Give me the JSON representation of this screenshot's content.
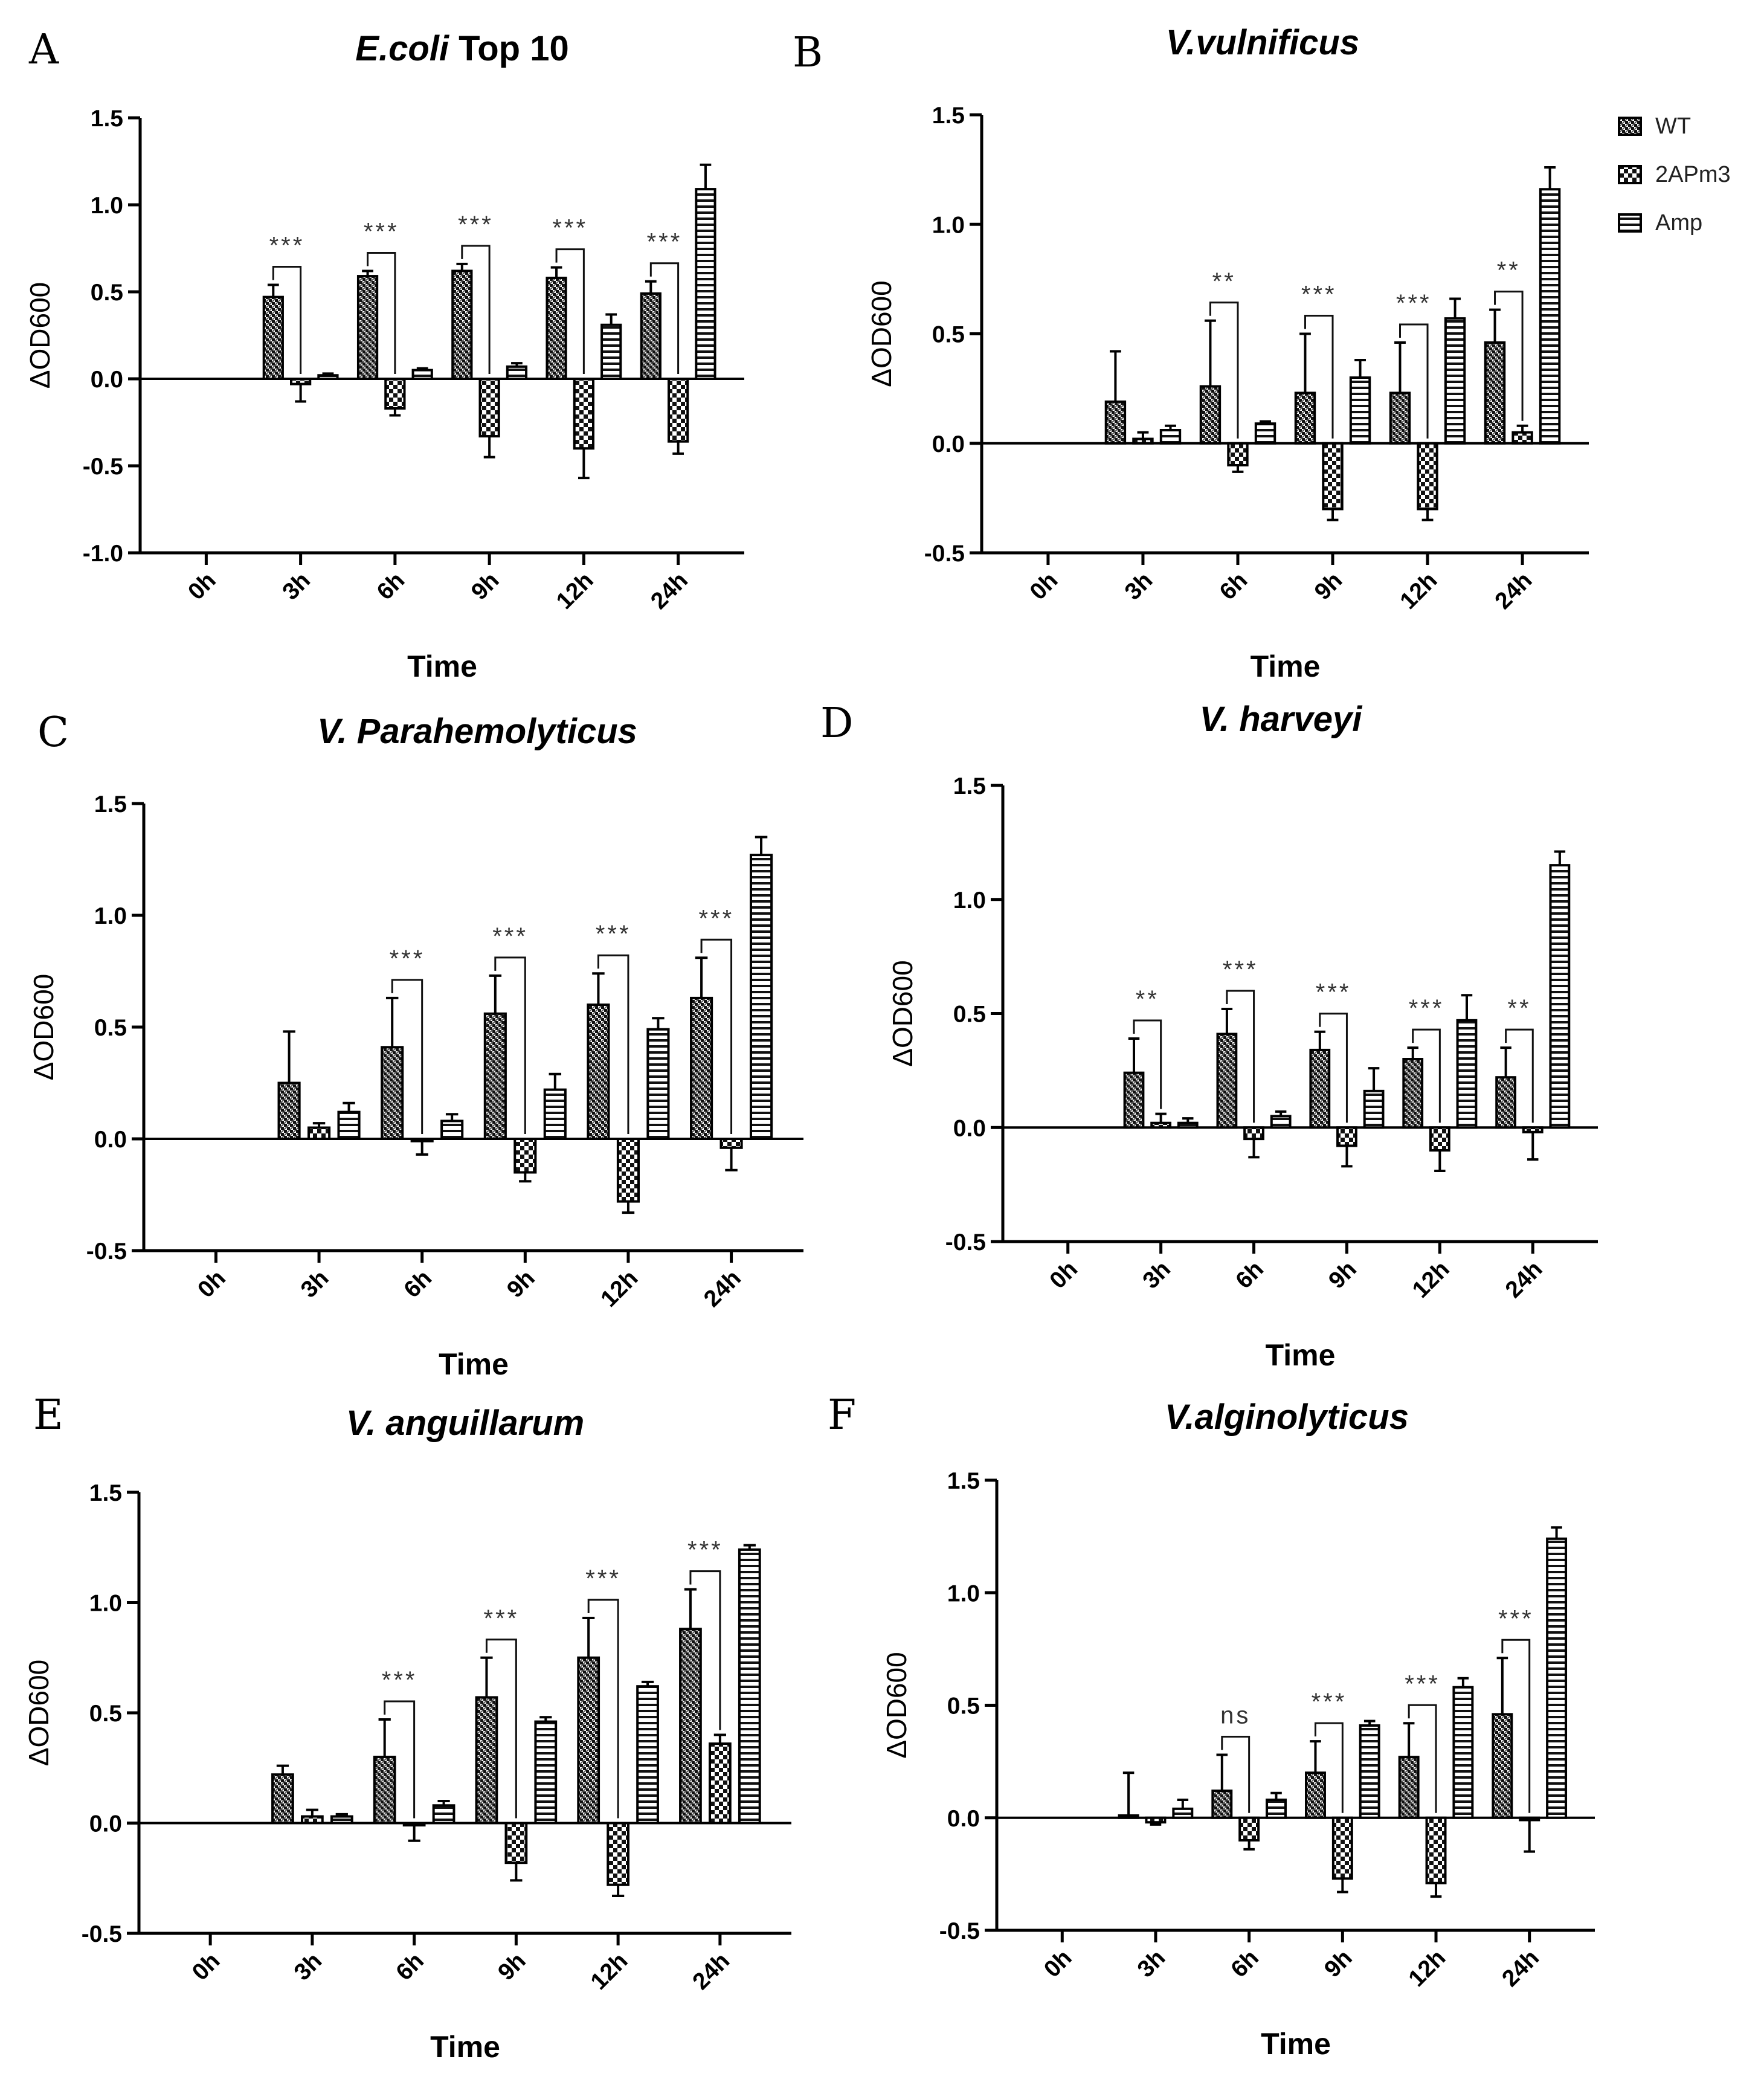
{
  "series_styles": {
    "WT": {
      "fill_pattern": "pat-wt"
    },
    "2APm3": {
      "fill_pattern": "pat-2apm3"
    },
    "Amp": {
      "fill_pattern": "pat-amp"
    }
  },
  "legend": {
    "placement": "top-right of panel B",
    "entries": [
      "WT",
      "2APm3",
      "Amp"
    ]
  },
  "chart_data": [
    {
      "panel": "A",
      "type": "bar",
      "title": "E.coli",
      "title_suffix": " Top 10",
      "xlabel": "Time",
      "ylabel": "ΔOD600",
      "ylim": [
        -1.0,
        1.5
      ],
      "yticks": [
        -1.0,
        -0.5,
        0.0,
        0.5,
        1.0,
        1.5
      ],
      "ytick_labels": [
        "-1.0",
        "-0.5",
        "0.0",
        "0.5",
        "1.0",
        "1.5"
      ],
      "categories": [
        "0h",
        "3h",
        "6h",
        "9h",
        "12h",
        "24h"
      ],
      "series": [
        {
          "name": "WT",
          "values": [
            0,
            0.47,
            0.59,
            0.62,
            0.58,
            0.49
          ],
          "errors": [
            0,
            0.07,
            0.03,
            0.04,
            0.06,
            0.07
          ]
        },
        {
          "name": "2APm3",
          "values": [
            0,
            -0.03,
            -0.17,
            -0.33,
            -0.4,
            -0.36
          ],
          "errors": [
            0,
            0.1,
            0.04,
            0.12,
            0.17,
            0.07
          ]
        },
        {
          "name": "Amp",
          "values": [
            0,
            0.02,
            0.05,
            0.07,
            0.31,
            1.09
          ],
          "errors": [
            0,
            0.01,
            0.01,
            0.02,
            0.06,
            0.14
          ]
        }
      ],
      "significance": [
        {
          "category": "3h",
          "label": "***"
        },
        {
          "category": "6h",
          "label": "***"
        },
        {
          "category": "9h",
          "label": "***"
        },
        {
          "category": "12h",
          "label": "***"
        },
        {
          "category": "24h",
          "label": "***"
        }
      ],
      "grid": false
    },
    {
      "panel": "B",
      "type": "bar",
      "title": "V.vulnificus",
      "title_suffix": "",
      "xlabel": "Time",
      "ylabel": "ΔOD600",
      "ylim": [
        -0.5,
        1.5
      ],
      "yticks": [
        -0.5,
        0.0,
        0.5,
        1.0,
        1.5
      ],
      "ytick_labels": [
        "-0.5",
        "0.0",
        "0.5",
        "1.0",
        "1.5"
      ],
      "categories": [
        "0h",
        "3h",
        "6h",
        "9h",
        "12h",
        "24h"
      ],
      "series": [
        {
          "name": "WT",
          "values": [
            0,
            0.19,
            0.26,
            0.23,
            0.23,
            0.46
          ],
          "errors": [
            0,
            0.23,
            0.3,
            0.27,
            0.23,
            0.15
          ]
        },
        {
          "name": "2APm3",
          "values": [
            0,
            0.02,
            -0.1,
            -0.3,
            -0.3,
            0.05
          ],
          "errors": [
            0,
            0.03,
            0.03,
            0.05,
            0.05,
            0.03
          ]
        },
        {
          "name": "Amp",
          "values": [
            0,
            0.06,
            0.09,
            0.3,
            0.57,
            1.16
          ],
          "errors": [
            0,
            0.02,
            0.01,
            0.08,
            0.09,
            0.1
          ]
        }
      ],
      "significance": [
        {
          "category": "6h",
          "label": "**"
        },
        {
          "category": "9h",
          "label": "***"
        },
        {
          "category": "12h",
          "label": "***"
        },
        {
          "category": "24h",
          "label": "**"
        }
      ],
      "grid": false
    },
    {
      "panel": "C",
      "type": "bar",
      "title": "V. Parahemolyticus",
      "title_suffix": "",
      "xlabel": "Time",
      "ylabel": "ΔOD600",
      "ylim": [
        -0.5,
        1.5
      ],
      "yticks": [
        -0.5,
        0.0,
        0.5,
        1.0,
        1.5
      ],
      "ytick_labels": [
        "-0.5",
        "0.0",
        "0.5",
        "1.0",
        "1.5"
      ],
      "categories": [
        "0h",
        "3h",
        "6h",
        "9h",
        "12h",
        "24h"
      ],
      "series": [
        {
          "name": "WT",
          "values": [
            0,
            0.25,
            0.41,
            0.56,
            0.6,
            0.63
          ],
          "errors": [
            0,
            0.23,
            0.22,
            0.17,
            0.14,
            0.18
          ]
        },
        {
          "name": "2APm3",
          "values": [
            0,
            0.05,
            -0.01,
            -0.15,
            -0.28,
            -0.04
          ],
          "errors": [
            0,
            0.02,
            0.06,
            0.04,
            0.05,
            0.1
          ]
        },
        {
          "name": "Amp",
          "values": [
            0,
            0.12,
            0.08,
            0.22,
            0.49,
            1.27
          ],
          "errors": [
            0,
            0.04,
            0.03,
            0.07,
            0.05,
            0.08
          ]
        }
      ],
      "significance": [
        {
          "category": "6h",
          "label": "***"
        },
        {
          "category": "9h",
          "label": "***"
        },
        {
          "category": "12h",
          "label": "***"
        },
        {
          "category": "24h",
          "label": "***"
        }
      ],
      "grid": false
    },
    {
      "panel": "D",
      "type": "bar",
      "title": "V. harveyi",
      "title_suffix": "",
      "xlabel": "Time",
      "ylabel": "ΔOD600",
      "ylim": [
        -0.5,
        1.5
      ],
      "yticks": [
        -0.5,
        0.0,
        0.5,
        1.0,
        1.5
      ],
      "ytick_labels": [
        "-0.5",
        "0.0",
        "0.5",
        "1.0",
        "1.5"
      ],
      "categories": [
        "0h",
        "3h",
        "6h",
        "9h",
        "12h",
        "24h"
      ],
      "series": [
        {
          "name": "WT",
          "values": [
            0,
            0.24,
            0.41,
            0.34,
            0.3,
            0.22
          ],
          "errors": [
            0,
            0.15,
            0.11,
            0.08,
            0.05,
            0.13
          ]
        },
        {
          "name": "2APm3",
          "values": [
            0,
            0.02,
            -0.05,
            -0.08,
            -0.1,
            -0.02
          ],
          "errors": [
            0,
            0.04,
            0.08,
            0.09,
            0.09,
            0.12
          ]
        },
        {
          "name": "Amp",
          "values": [
            0,
            0.02,
            0.05,
            0.16,
            0.47,
            1.15
          ],
          "errors": [
            0,
            0.02,
            0.02,
            0.1,
            0.11,
            0.06
          ]
        }
      ],
      "significance": [
        {
          "category": "3h",
          "label": "**"
        },
        {
          "category": "6h",
          "label": "***"
        },
        {
          "category": "9h",
          "label": "***"
        },
        {
          "category": "12h",
          "label": "***"
        },
        {
          "category": "24h",
          "label": "**"
        }
      ],
      "grid": false
    },
    {
      "panel": "E",
      "type": "bar",
      "title": "V. anguillarum",
      "title_suffix": "",
      "xlabel": "Time",
      "ylabel": "ΔOD600",
      "ylim": [
        -0.5,
        1.5
      ],
      "yticks": [
        -0.5,
        0.0,
        0.5,
        1.0,
        1.5
      ],
      "ytick_labels": [
        "-0.5",
        "0.0",
        "0.5",
        "1.0",
        "1.5"
      ],
      "categories": [
        "0h",
        "3h",
        "6h",
        "9h",
        "12h",
        "24h"
      ],
      "series": [
        {
          "name": "WT",
          "values": [
            0,
            0.22,
            0.3,
            0.57,
            0.75,
            0.88
          ],
          "errors": [
            0,
            0.04,
            0.17,
            0.18,
            0.18,
            0.18
          ]
        },
        {
          "name": "2APm3",
          "values": [
            0,
            0.03,
            -0.01,
            -0.18,
            -0.28,
            0.36
          ],
          "errors": [
            0,
            0.03,
            0.07,
            0.08,
            0.05,
            0.04
          ]
        },
        {
          "name": "Amp",
          "values": [
            0,
            0.03,
            0.08,
            0.46,
            0.62,
            1.24
          ],
          "errors": [
            0,
            0.01,
            0.02,
            0.02,
            0.02,
            0.02
          ]
        }
      ],
      "significance": [
        {
          "category": "6h",
          "label": "***"
        },
        {
          "category": "9h",
          "label": "***"
        },
        {
          "category": "12h",
          "label": "***"
        },
        {
          "category": "24h",
          "label": "***"
        }
      ],
      "grid": false
    },
    {
      "panel": "F",
      "type": "bar",
      "title": "V.alginolyticus",
      "title_suffix": "",
      "xlabel": "Time",
      "ylabel": "ΔOD600",
      "ylim": [
        -0.5,
        1.5
      ],
      "yticks": [
        -0.5,
        0.0,
        0.5,
        1.0,
        1.5
      ],
      "ytick_labels": [
        "-0.5",
        "0.0",
        "0.5",
        "1.0",
        "1.5"
      ],
      "categories": [
        "0h",
        "3h",
        "6h",
        "9h",
        "12h",
        "24h"
      ],
      "series": [
        {
          "name": "WT",
          "values": [
            0,
            0.01,
            0.12,
            0.2,
            0.27,
            0.46
          ],
          "errors": [
            0,
            0.19,
            0.16,
            0.14,
            0.15,
            0.25
          ]
        },
        {
          "name": "2APm3",
          "values": [
            0,
            -0.02,
            -0.1,
            -0.27,
            -0.29,
            -0.01
          ],
          "errors": [
            0,
            0.01,
            0.04,
            0.06,
            0.06,
            0.14
          ]
        },
        {
          "name": "Amp",
          "values": [
            0,
            0.04,
            0.08,
            0.41,
            0.58,
            1.24
          ],
          "errors": [
            0,
            0.04,
            0.03,
            0.02,
            0.04,
            0.05
          ]
        }
      ],
      "significance": [
        {
          "category": "6h",
          "label": "ns"
        },
        {
          "category": "9h",
          "label": "***"
        },
        {
          "category": "12h",
          "label": "***"
        },
        {
          "category": "24h",
          "label": "***"
        }
      ],
      "grid": false
    }
  ]
}
